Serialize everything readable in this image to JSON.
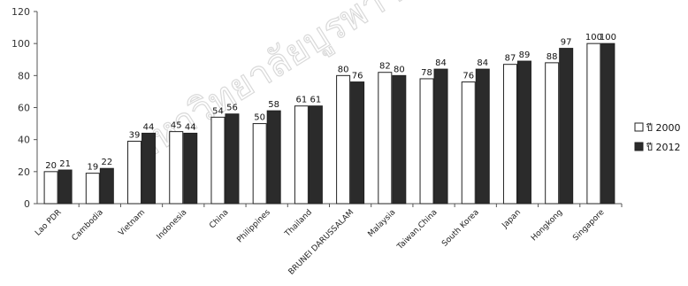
{
  "chart_data": {
    "type": "bar",
    "categories": [
      "Lao PDR",
      "Cambodia",
      "Vietnam",
      "Indonesia",
      "China",
      "Philippines",
      "Thailand",
      "BRUNEI DARUSSALAM",
      "Malaysia",
      "Taiwan,China",
      "South Korea",
      "Japan",
      "Hongkong",
      "Singapore"
    ],
    "series": [
      {
        "name": "ปี 2000",
        "color": "#ffffff",
        "values": [
          20,
          19,
          39,
          45,
          54,
          50,
          61,
          80,
          82,
          78,
          76,
          87,
          88,
          100
        ]
      },
      {
        "name": "ปี 2012",
        "color": "#2b2b2b",
        "values": [
          21,
          22,
          44,
          44,
          56,
          58,
          61,
          76,
          80,
          84,
          84,
          89,
          97,
          100
        ]
      }
    ],
    "ylim": [
      0,
      120
    ],
    "yticks": [
      "0",
      "20",
      "40",
      "60",
      "80",
      "100",
      "120"
    ],
    "legend": "right",
    "grid": false,
    "title": "",
    "xlabel": "",
    "ylabel": ""
  },
  "watermark": "มหาวิทยาลัยบูรพา Burapha University"
}
